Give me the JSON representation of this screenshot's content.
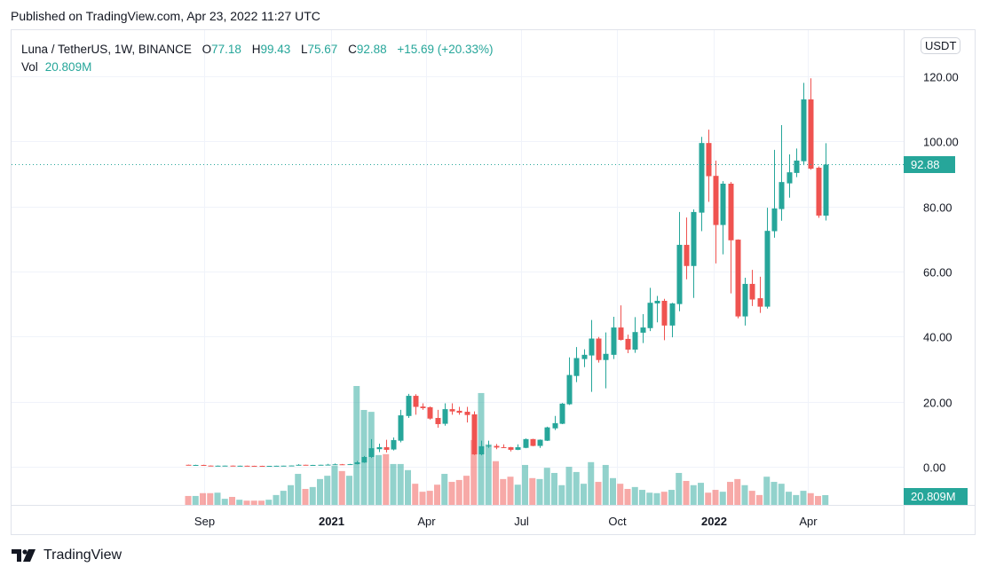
{
  "published": "Published on TradingView.com, Apr 23, 2022 11:27 UTC",
  "legend": {
    "symbol": "Luna / TetherUS, 1W, BINANCE",
    "o_label": "O",
    "o": "77.18",
    "h_label": "H",
    "h": "99.43",
    "l_label": "L",
    "l": "75.67",
    "c_label": "C",
    "c": "92.88",
    "change": "+15.69 (+20.33%)",
    "vol_label": "Vol",
    "vol": "20.809M"
  },
  "currency_button": "USDT",
  "last_price_tag": "92.88",
  "last_volume_tag": "20.809M",
  "footer_brand": "TradingView",
  "colors": {
    "up": "#26a69a",
    "down": "#ef5350",
    "grid": "#f0f3fa",
    "text": "#131722"
  },
  "chart_data": {
    "type": "candlestick",
    "interval": "1W",
    "y_unit": "USDT",
    "ylim": [
      0,
      120
    ],
    "y_ticks": [
      "120.00",
      "100.00",
      "80.00",
      "60.00",
      "40.00",
      "20.00",
      "0.00"
    ],
    "y_tick_values": [
      120,
      100,
      80,
      60,
      40,
      20,
      0
    ],
    "x_ticks": [
      {
        "label": "Sep",
        "date": "2020-09-01",
        "bold": false
      },
      {
        "label": "2021",
        "date": "2021-01-01",
        "bold": true
      },
      {
        "label": "Apr",
        "date": "2021-04-01",
        "bold": false
      },
      {
        "label": "Jul",
        "date": "2021-07-01",
        "bold": false
      },
      {
        "label": "Oct",
        "date": "2021-10-01",
        "bold": false
      },
      {
        "label": "2022",
        "date": "2022-01-01",
        "bold": true
      },
      {
        "label": "Apr",
        "date": "2022-04-01",
        "bold": false
      }
    ],
    "grid": true,
    "last_price_line": 92.88,
    "volume_unit": "M",
    "columns": [
      "date",
      "open",
      "high",
      "low",
      "close",
      "volume"
    ],
    "candles": [
      [
        "2020-08-17",
        0.6,
        0.65,
        0.45,
        0.5,
        19
      ],
      [
        "2020-08-24",
        0.5,
        0.6,
        0.45,
        0.55,
        19
      ],
      [
        "2020-08-31",
        0.55,
        0.6,
        0.33,
        0.35,
        25
      ],
      [
        "2020-09-07",
        0.35,
        0.4,
        0.28,
        0.3,
        25
      ],
      [
        "2020-09-14",
        0.3,
        0.36,
        0.28,
        0.32,
        26
      ],
      [
        "2020-09-21",
        0.32,
        0.36,
        0.3,
        0.34,
        13
      ],
      [
        "2020-09-28",
        0.34,
        0.36,
        0.28,
        0.3,
        17
      ],
      [
        "2020-10-05",
        0.3,
        0.33,
        0.28,
        0.31,
        11
      ],
      [
        "2020-10-12",
        0.31,
        0.33,
        0.27,
        0.28,
        9
      ],
      [
        "2020-10-19",
        0.28,
        0.3,
        0.26,
        0.27,
        9
      ],
      [
        "2020-10-26",
        0.27,
        0.29,
        0.24,
        0.25,
        9
      ],
      [
        "2020-11-02",
        0.25,
        0.28,
        0.24,
        0.27,
        11
      ],
      [
        "2020-11-09",
        0.27,
        0.31,
        0.26,
        0.3,
        21
      ],
      [
        "2020-11-16",
        0.3,
        0.35,
        0.29,
        0.33,
        30
      ],
      [
        "2020-11-23",
        0.33,
        0.4,
        0.3,
        0.38,
        42
      ],
      [
        "2020-11-30",
        0.38,
        0.8,
        0.37,
        0.6,
        66
      ],
      [
        "2020-12-07",
        0.6,
        0.62,
        0.48,
        0.5,
        34
      ],
      [
        "2020-12-14",
        0.5,
        0.58,
        0.48,
        0.55,
        38
      ],
      [
        "2020-12-21",
        0.55,
        0.63,
        0.5,
        0.6,
        55
      ],
      [
        "2020-12-28",
        0.6,
        0.9,
        0.58,
        0.65,
        62
      ],
      [
        "2021-01-04",
        0.65,
        1.0,
        0.6,
        0.75,
        83
      ],
      [
        "2021-01-11",
        0.75,
        0.85,
        0.65,
        0.7,
        72
      ],
      [
        "2021-01-18",
        0.7,
        0.9,
        0.68,
        0.8,
        62
      ],
      [
        "2021-01-25",
        0.8,
        1.8,
        0.7,
        1.36,
        253
      ],
      [
        "2021-02-01",
        1.3,
        3.3,
        1.2,
        3.0,
        202
      ],
      [
        "2021-02-08",
        3.0,
        8.5,
        2.7,
        5.7,
        198
      ],
      [
        "2021-02-15",
        5.4,
        7.1,
        4.5,
        6.0,
        106
      ],
      [
        "2021-02-22",
        6.0,
        8.3,
        4.4,
        5.2,
        108
      ],
      [
        "2021-03-01",
        5.3,
        9.0,
        5.0,
        8.2,
        87
      ],
      [
        "2021-03-08",
        8.0,
        17.5,
        7.5,
        15.8,
        87
      ],
      [
        "2021-03-15",
        15.6,
        22.4,
        15.0,
        21.8,
        74
      ],
      [
        "2021-03-22",
        21.8,
        22.3,
        16.0,
        18.4,
        45
      ],
      [
        "2021-03-29",
        18.5,
        19.5,
        17.5,
        18.0,
        28
      ],
      [
        "2021-04-05",
        18.3,
        18.5,
        14.5,
        14.8,
        30
      ],
      [
        "2021-04-12",
        15.0,
        17.5,
        12.0,
        13.1,
        43
      ],
      [
        "2021-04-19",
        13.2,
        19.5,
        12.6,
        17.7,
        66
      ],
      [
        "2021-04-26",
        17.7,
        19.5,
        16.0,
        17.0,
        49
      ],
      [
        "2021-05-03",
        17.2,
        18.4,
        16.0,
        16.6,
        53
      ],
      [
        "2021-05-10",
        16.9,
        18.4,
        13.6,
        15.9,
        62
      ],
      [
        "2021-05-17",
        16.1,
        17.0,
        3.6,
        3.8,
        138
      ],
      [
        "2021-05-24",
        3.8,
        8.0,
        3.5,
        6.3,
        238
      ],
      [
        "2021-05-31",
        6.3,
        8.0,
        5.8,
        6.5,
        129
      ],
      [
        "2021-06-07",
        6.4,
        7.0,
        5.4,
        5.9,
        93
      ],
      [
        "2021-06-14",
        6.0,
        6.9,
        5.8,
        5.9,
        55
      ],
      [
        "2021-06-21",
        6.0,
        6.1,
        4.7,
        5.2,
        60
      ],
      [
        "2021-06-28",
        5.2,
        6.9,
        5.1,
        6.0,
        43
      ],
      [
        "2021-07-05",
        5.8,
        8.7,
        5.7,
        8.5,
        85
      ],
      [
        "2021-07-12",
        8.5,
        8.6,
        6.3,
        6.4,
        57
      ],
      [
        "2021-07-19",
        6.4,
        8.4,
        5.8,
        8.3,
        55
      ],
      [
        "2021-07-26",
        8.0,
        12.3,
        7.9,
        12.1,
        79
      ],
      [
        "2021-08-02",
        11.8,
        15.6,
        11.3,
        13.4,
        68
      ],
      [
        "2021-08-09",
        13.2,
        19.6,
        13.1,
        19.4,
        42
      ],
      [
        "2021-08-16",
        19.2,
        33.6,
        19.0,
        28.2,
        81
      ],
      [
        "2021-08-23",
        27.9,
        36.8,
        26.0,
        33.4,
        70
      ],
      [
        "2021-08-30",
        33.1,
        36.1,
        30.6,
        34.4,
        45
      ],
      [
        "2021-09-06",
        34.2,
        45.1,
        23.0,
        39.4,
        91
      ],
      [
        "2021-09-13",
        39.4,
        39.9,
        32.0,
        32.8,
        49
      ],
      [
        "2021-09-20",
        32.8,
        41.3,
        24.1,
        34.7,
        85
      ],
      [
        "2021-09-27",
        34.4,
        46.1,
        33.1,
        42.8,
        57
      ],
      [
        "2021-10-04",
        42.8,
        49.6,
        38.8,
        39.0,
        45
      ],
      [
        "2021-10-11",
        39.3,
        40.6,
        34.9,
        36.0,
        34
      ],
      [
        "2021-10-18",
        36.0,
        46.0,
        35.0,
        41.4,
        38
      ],
      [
        "2021-10-25",
        41.2,
        46.9,
        38.0,
        42.8,
        32
      ],
      [
        "2021-11-01",
        42.6,
        55.0,
        41.7,
        50.4,
        26
      ],
      [
        "2021-11-08",
        50.2,
        52.5,
        44.4,
        51.0,
        25
      ],
      [
        "2021-11-15",
        51.0,
        51.6,
        38.9,
        43.4,
        28
      ],
      [
        "2021-11-22",
        43.4,
        50.4,
        39.8,
        50.2,
        32
      ],
      [
        "2021-11-29",
        50.0,
        78.3,
        47.8,
        68.2,
        68
      ],
      [
        "2021-12-06",
        68.2,
        76.6,
        57.6,
        61.7,
        51
      ],
      [
        "2021-12-13",
        61.7,
        79.1,
        51.9,
        78.3,
        42
      ],
      [
        "2021-12-20",
        78.1,
        101.4,
        72.4,
        99.5,
        47
      ],
      [
        "2021-12-27",
        99.5,
        103.6,
        81.4,
        89.3,
        26
      ],
      [
        "2022-01-03",
        89.4,
        94.1,
        62.5,
        74.3,
        32
      ],
      [
        "2022-01-10",
        74.3,
        87.8,
        65.3,
        87.0,
        28
      ],
      [
        "2022-01-17",
        87.0,
        87.5,
        53.3,
        69.6,
        49
      ],
      [
        "2022-01-24",
        69.8,
        69.9,
        45.6,
        46.2,
        55
      ],
      [
        "2022-01-31",
        46.2,
        58.1,
        43.4,
        56.2,
        42
      ],
      [
        "2022-02-07",
        56.2,
        60.5,
        49.4,
        51.4,
        30
      ],
      [
        "2022-02-14",
        51.8,
        58.4,
        47.3,
        49.2,
        21
      ],
      [
        "2022-02-21",
        49.2,
        79.6,
        48.6,
        72.5,
        60
      ],
      [
        "2022-02-28",
        72.4,
        97.4,
        70.4,
        79.4,
        49
      ],
      [
        "2022-03-07",
        79.2,
        105.0,
        75.6,
        87.5,
        45
      ],
      [
        "2022-03-14",
        87.1,
        96.0,
        82.7,
        90.5,
        28
      ],
      [
        "2022-03-21",
        90.3,
        97.8,
        89.0,
        94.1,
        21
      ],
      [
        "2022-03-28",
        93.9,
        118.0,
        92.7,
        112.9,
        30
      ],
      [
        "2022-04-04",
        112.9,
        119.4,
        91.3,
        91.6,
        25
      ],
      [
        "2022-04-11",
        91.9,
        92.3,
        76.5,
        77.2,
        19
      ],
      [
        "2022-04-18",
        77.18,
        99.43,
        75.67,
        92.88,
        20.809
      ]
    ]
  }
}
